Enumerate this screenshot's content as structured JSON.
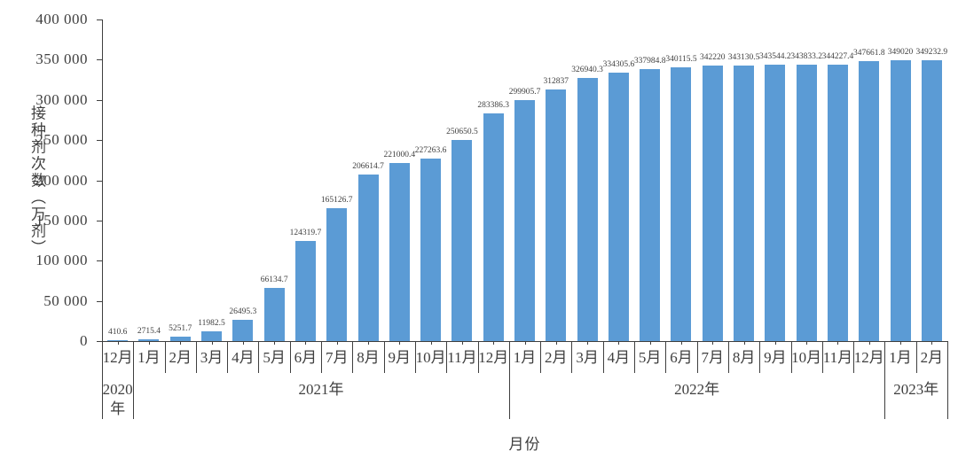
{
  "chart_data": {
    "type": "bar",
    "title": "",
    "ylabel": "接种剂次数（万剂）",
    "xlabel": "月份",
    "bar_color": "#5B9BD5",
    "grid": false,
    "legend": "none",
    "ylim": [
      0,
      400000
    ],
    "ytick_interval": 50000,
    "ytick_labels": [
      "0",
      "50 000",
      "100 000",
      "150 000",
      "200 000",
      "250 000",
      "300 000",
      "350 000",
      "400 000"
    ],
    "categories": [
      "12月",
      "1月",
      "2月",
      "3月",
      "4月",
      "5月",
      "6月",
      "7月",
      "8月",
      "9月",
      "10月",
      "11月",
      "12月",
      "1月",
      "2月",
      "3月",
      "4月",
      "5月",
      "6月",
      "7月",
      "8月",
      "9月",
      "10月",
      "11月",
      "12月",
      "1月",
      "2月"
    ],
    "values": [
      410.6,
      2715.4,
      5251.7,
      11982.5,
      26495.3,
      66134.7,
      124319.7,
      165126.7,
      206614.7,
      221000.4,
      227263.6,
      250650.5,
      283386.3,
      299905.7,
      312837,
      326940.3,
      334305.6,
      337984.8,
      340115.5,
      342220,
      343130.5,
      343544.2,
      343833.2,
      344227.4,
      347661.8,
      349020,
      349232.9
    ],
    "value_labels": [
      "410.6",
      "2715.4",
      "5251.7",
      "11982.5",
      "26495.3",
      "66134.7",
      "124319.7",
      "165126.7",
      "206614.7",
      "221000.4",
      "227263.6",
      "250650.5",
      "283386.3",
      "299905.7",
      "312837",
      "326940.3",
      "334305.6",
      "337984.8",
      "340115.5",
      "342220",
      "343130.5",
      "343544.2",
      "343833.2",
      "344227.4",
      "347661.8",
      "349020",
      "349232.9"
    ],
    "year_groups": [
      {
        "label": "2020年",
        "start": 0,
        "count": 1
      },
      {
        "label": "2021年",
        "start": 1,
        "count": 12
      },
      {
        "label": "2022年",
        "start": 13,
        "count": 12
      },
      {
        "label": "2023年",
        "start": 25,
        "count": 2
      }
    ]
  }
}
